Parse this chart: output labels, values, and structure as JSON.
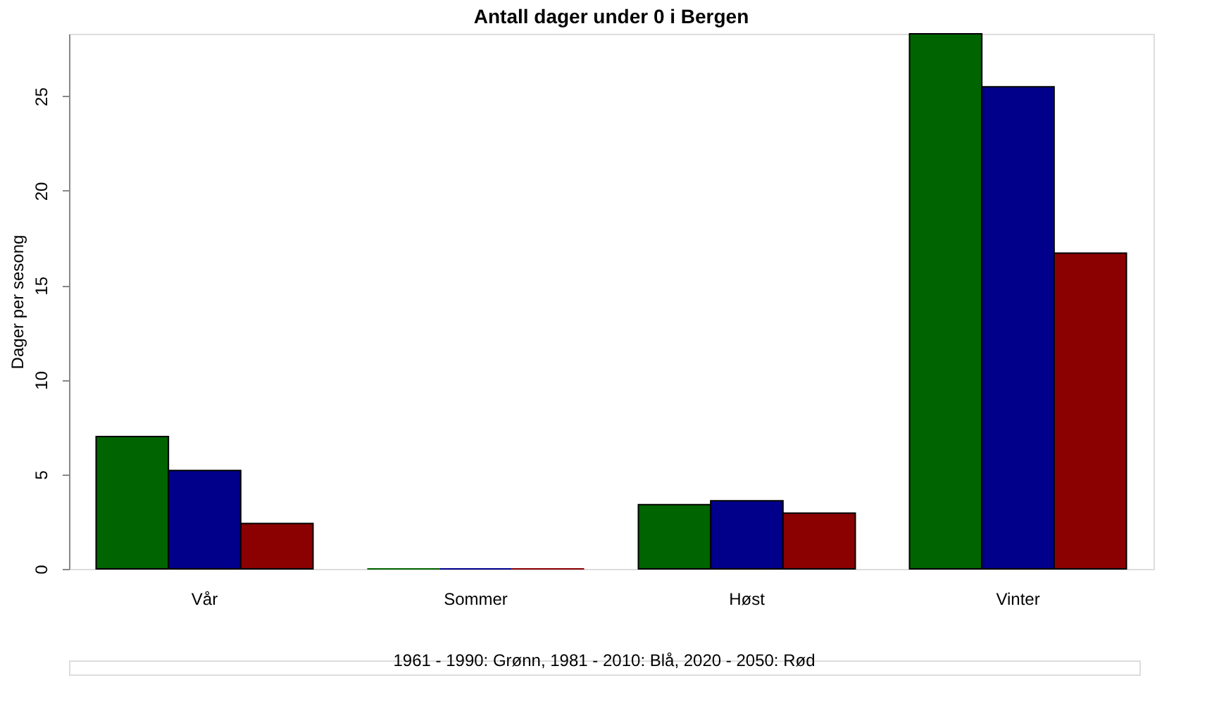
{
  "chart_data": {
    "type": "bar",
    "title": "Antall dager under 0 i Bergen",
    "ylabel": "Dager per sesong",
    "categories": [
      "Vår",
      "Sommer",
      "Høst",
      "Vinter"
    ],
    "series": [
      {
        "color": "#006400",
        "values": [
          7.0,
          0,
          3.4,
          28.3
        ]
      },
      {
        "color": "#00008b",
        "values": [
          5.2,
          0,
          3.6,
          25.5
        ]
      },
      {
        "color": "#8b0000",
        "values": [
          2.4,
          0,
          2.95,
          16.7
        ]
      }
    ],
    "ylim": [
      0,
      28.3
    ],
    "yticks": [
      0,
      5,
      10,
      15,
      20,
      25
    ],
    "grid": false,
    "annotations": [
      "1961 - 1990: Grønn, 1981 - 2010: Blå, 2020 - 2050: Rød"
    ]
  }
}
